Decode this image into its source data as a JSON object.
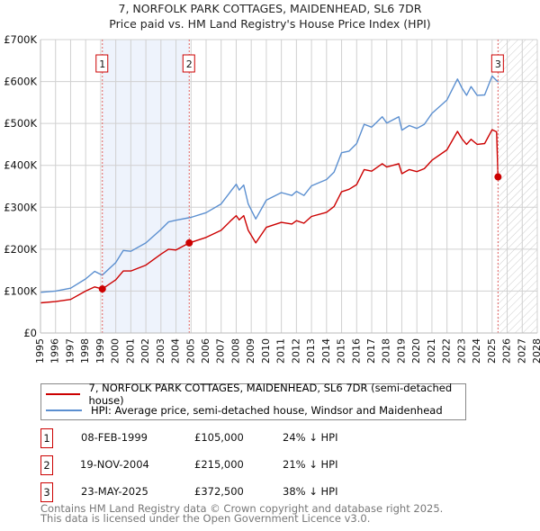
{
  "chart_data": {
    "type": "line",
    "title": "7, NORFOLK PARK COTTAGES, MAIDENHEAD, SL6 7DR",
    "subtitle": "Price paid vs. HM Land Registry's House Price Index (HPI)",
    "xlim": [
      1995,
      2028
    ],
    "ylim": [
      0,
      700000
    ],
    "x_ticks": [
      "1995",
      "1996",
      "1997",
      "1998",
      "1999",
      "2000",
      "2001",
      "2002",
      "2003",
      "2004",
      "2005",
      "2006",
      "2007",
      "2008",
      "2009",
      "2010",
      "2011",
      "2012",
      "2013",
      "2014",
      "2015",
      "2016",
      "2017",
      "2018",
      "2019",
      "2020",
      "2021",
      "2022",
      "2023",
      "2024",
      "2025",
      "2026",
      "2027",
      "2028"
    ],
    "y_ticks": [
      {
        "value": 0,
        "label": "£0"
      },
      {
        "value": 100000,
        "label": "£100K"
      },
      {
        "value": 200000,
        "label": "£200K"
      },
      {
        "value": 300000,
        "label": "£300K"
      },
      {
        "value": 400000,
        "label": "£400K"
      },
      {
        "value": 500000,
        "label": "£500K"
      },
      {
        "value": 600000,
        "label": "£600K"
      },
      {
        "value": 700000,
        "label": "£700K"
      }
    ],
    "grid": true,
    "shaded_between_sales": [
      1999.11,
      2004.88
    ],
    "forecast_hatch_from": 2025.39,
    "series": [
      {
        "name": "7, NORFOLK PARK COTTAGES, MAIDENHEAD, SL6 7DR (semi-detached house)",
        "color": "#cc0000",
        "x": [
          1995,
          1996,
          1997,
          1998,
          1998.6,
          1999.11,
          2000,
          2000.5,
          2001,
          2002,
          2003,
          2003.5,
          2004,
          2004.88,
          2006,
          2007,
          2007.7,
          2008,
          2008.2,
          2008.5,
          2008.8,
          2009.3,
          2010,
          2011,
          2011.7,
          2012,
          2012.5,
          2013,
          2014,
          2014.5,
          2015,
          2015.5,
          2016,
          2016.5,
          2017,
          2017.7,
          2018,
          2018.8,
          2019,
          2019.5,
          2020,
          2020.5,
          2021,
          2022,
          2022.7,
          2023,
          2023.3,
          2023.6,
          2024,
          2024.5,
          2025,
          2025.3,
          2025.39
        ],
        "values": [
          72000,
          75000,
          80000,
          100000,
          110000,
          105000,
          127000,
          148000,
          148000,
          162000,
          188000,
          200000,
          198000,
          215000,
          228000,
          245000,
          270000,
          280000,
          270000,
          280000,
          245000,
          215000,
          252000,
          264000,
          260000,
          268000,
          262000,
          278000,
          288000,
          302000,
          337000,
          343000,
          354000,
          390000,
          386000,
          404000,
          396000,
          404000,
          380000,
          390000,
          385000,
          392000,
          412000,
          437000,
          481000,
          463000,
          450000,
          462000,
          450000,
          452000,
          485000,
          480000,
          372500
        ]
      },
      {
        "name": "HPI: Average price, semi-detached house, Windsor and Maidenhead",
        "color": "#5b8fd0",
        "x": [
          1995,
          1996,
          1997,
          1998,
          1998.6,
          1999.1,
          2000,
          2000.5,
          2001,
          2002,
          2003,
          2003.5,
          2004,
          2005,
          2006,
          2007,
          2007.7,
          2008,
          2008.2,
          2008.5,
          2008.8,
          2009.3,
          2010,
          2011,
          2011.7,
          2012,
          2012.5,
          2013,
          2014,
          2014.5,
          2015,
          2015.5,
          2016,
          2016.5,
          2017,
          2017.7,
          2018,
          2018.8,
          2019,
          2019.5,
          2020,
          2020.5,
          2021,
          2022,
          2022.7,
          2023,
          2023.3,
          2023.6,
          2024,
          2024.5,
          2025,
          2025.3,
          2025.4
        ],
        "values": [
          97000,
          100000,
          107000,
          129000,
          147000,
          138000,
          168000,
          197000,
          195000,
          215000,
          247000,
          265000,
          269000,
          276000,
          287000,
          308000,
          341000,
          355000,
          341000,
          353000,
          308000,
          272000,
          317000,
          335000,
          328000,
          338000,
          328000,
          351000,
          366000,
          384000,
          430000,
          434000,
          452000,
          498000,
          491000,
          516000,
          501000,
          516000,
          484000,
          495000,
          488000,
          498000,
          524000,
          556000,
          606000,
          584000,
          567000,
          588000,
          567000,
          568000,
          613000,
          602000,
          599000
        ]
      }
    ],
    "sales": [
      {
        "label": "1",
        "x": 1999.11,
        "value": 105000,
        "date": "08-FEB-1999",
        "price": "£105,000",
        "hpi": "24% ↓ HPI"
      },
      {
        "label": "2",
        "x": 2004.88,
        "value": 215000,
        "date": "19-NOV-2004",
        "price": "£215,000",
        "hpi": "21% ↓ HPI"
      },
      {
        "label": "3",
        "x": 2025.39,
        "value": 372500,
        "date": "23-MAY-2025",
        "price": "£372,500",
        "hpi": "38% ↓ HPI"
      }
    ]
  },
  "footer": {
    "line1": "Contains HM Land Registry data © Crown copyright and database right 2025.",
    "line2": "This data is licensed under the Open Government Licence v3.0."
  }
}
